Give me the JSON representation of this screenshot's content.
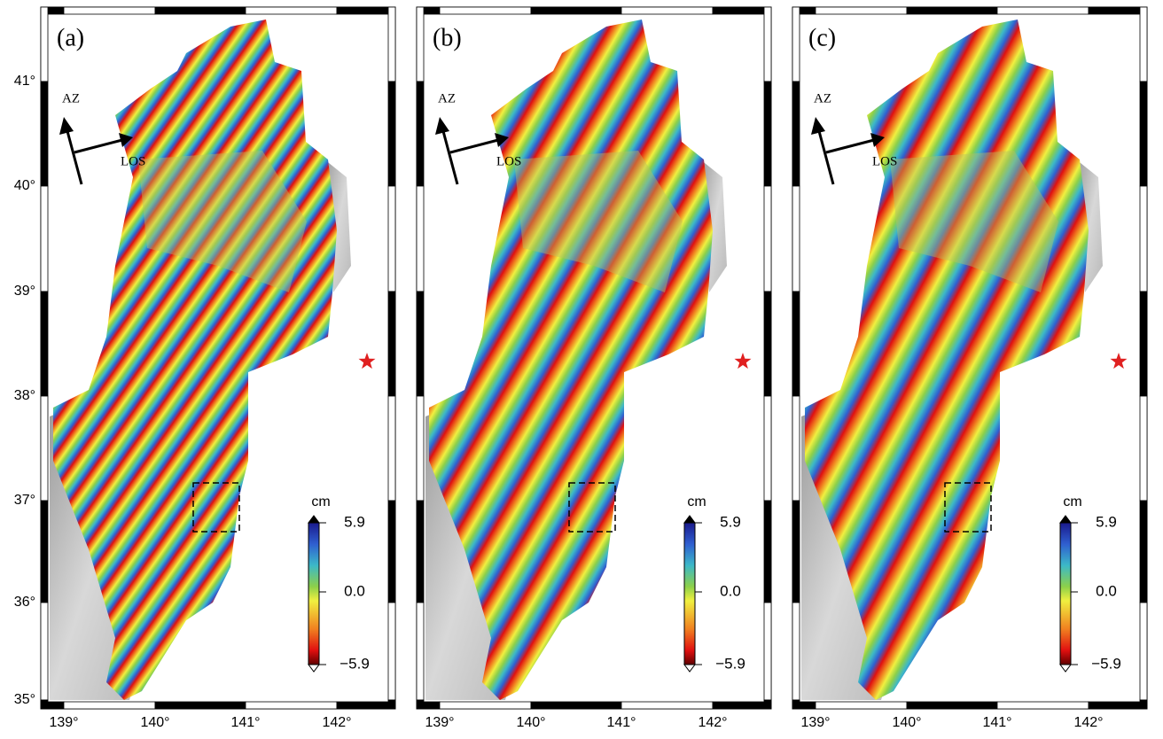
{
  "panels": [
    {
      "label": "(a)"
    },
    {
      "label": "(b)"
    },
    {
      "label": "(c)"
    }
  ],
  "lat_labels": [
    "41°",
    "40°",
    "39°",
    "38°",
    "37°",
    "36°",
    "35°"
  ],
  "lon_labels": [
    "139°",
    "140°",
    "141°",
    "142°"
  ],
  "arrows": {
    "azimuth": "AZ",
    "line_of_sight": "LOS"
  },
  "colorbar": {
    "unit": "cm",
    "labels": [
      "5.9",
      "0.0",
      "−5.9"
    ]
  }
}
